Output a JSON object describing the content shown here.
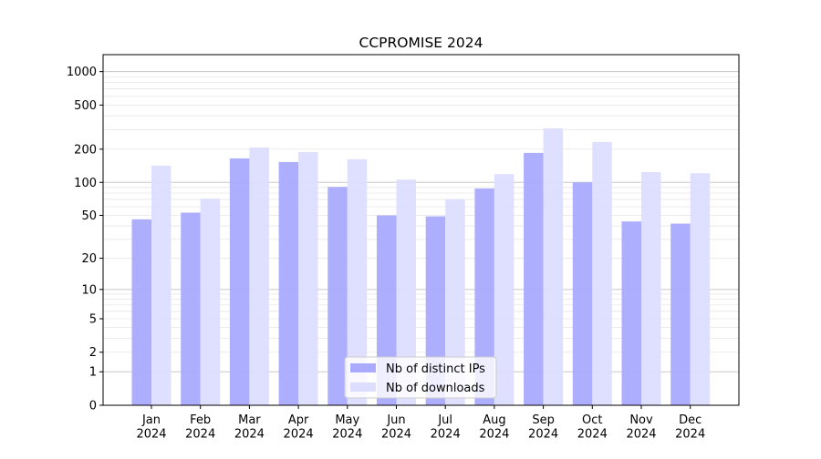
{
  "chart_data": {
    "type": "bar",
    "title": "CCPROMISE 2024",
    "xlabel": "",
    "ylabel": "",
    "yscale": "log(1+y)",
    "ylim": [
      0,
      1300
    ],
    "yticks": [
      0,
      1,
      2,
      5,
      10,
      20,
      50,
      100,
      200,
      500,
      1000
    ],
    "grid": true,
    "legend": "bottom-center",
    "categories": [
      "Jan\n2024",
      "Feb\n2024",
      "Mar\n2024",
      "Apr\n2024",
      "May\n2024",
      "Jun\n2024",
      "Jul\n2024",
      "Aug\n2024",
      "Sep\n2024",
      "Oct\n2024",
      "Nov\n2024",
      "Dec\n2024"
    ],
    "series": [
      {
        "name": "Nb of distinct IPs",
        "color": "#aaaaff",
        "values": [
          46,
          53,
          165,
          153,
          91,
          50,
          49,
          88,
          185,
          100,
          44,
          42
        ]
      },
      {
        "name": "Nb of downloads",
        "color": "#ddddff",
        "values": [
          142,
          71,
          207,
          188,
          162,
          106,
          70,
          119,
          308,
          232,
          124,
          121
        ]
      }
    ]
  }
}
